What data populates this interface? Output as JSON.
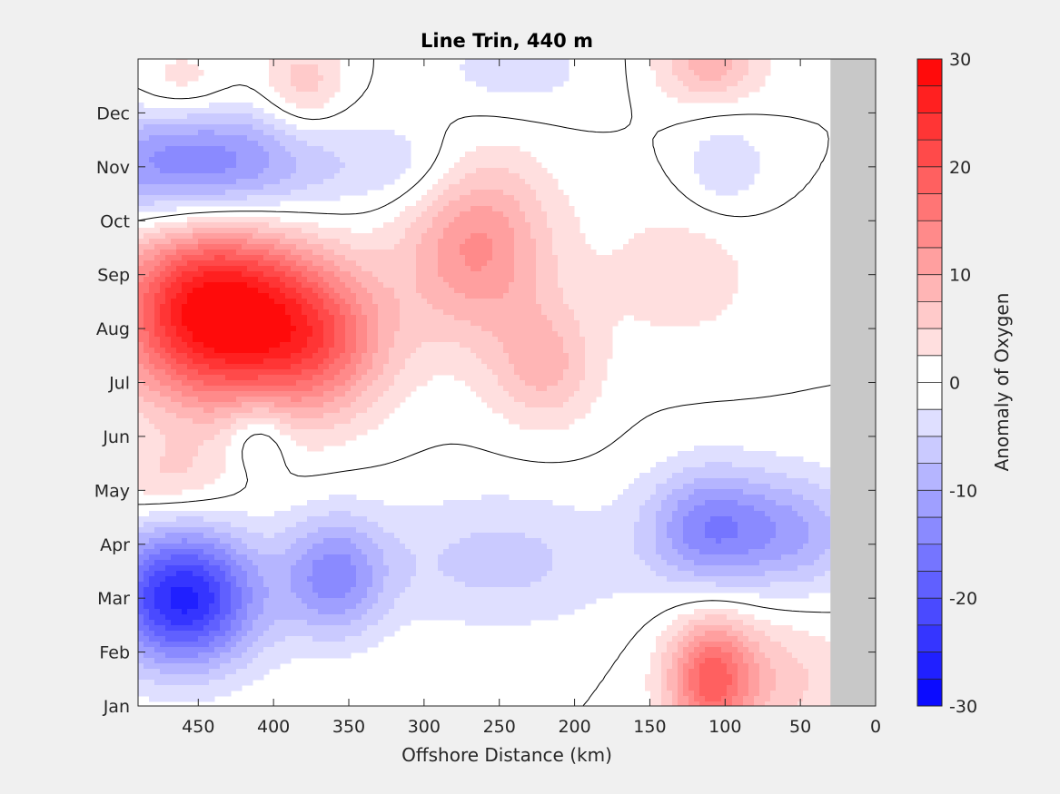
{
  "chart_data": {
    "type": "heatmap",
    "subtype": "filled-contour",
    "title": "Line Trin, 440 m",
    "xlabel": "Offshore Distance (km)",
    "xlim": [
      490,
      0
    ],
    "x_reversed": true,
    "xticks": [
      450,
      400,
      350,
      300,
      250,
      200,
      150,
      100,
      50,
      0
    ],
    "y_categories": [
      "Jan",
      "Feb",
      "Mar",
      "Apr",
      "May",
      "Jun",
      "Jul",
      "Aug",
      "Sep",
      "Oct",
      "Nov",
      "Dec"
    ],
    "colorbar": {
      "label": "Anomaly of Oxygen",
      "range": [
        -30,
        30
      ],
      "step": 2.5,
      "ticks": [
        30,
        20,
        10,
        0,
        -10,
        -20,
        -30
      ],
      "low_color": "#0000ff",
      "mid_color": "#ffffff",
      "high_color": "#ff0000"
    },
    "no_data_region_km": [
      30,
      0
    ],
    "no_data_color": "#c8c8c8",
    "zero_contour_color": "#000000",
    "features": [
      {
        "x_km": 440,
        "month": 8.3,
        "value": 30,
        "sigma_km": 45,
        "sigma_month": 1.2
      },
      {
        "x_km": 370,
        "month": 7.8,
        "value": 15,
        "sigma_km": 35,
        "sigma_month": 1.0
      },
      {
        "x_km": 460,
        "month": 3.0,
        "value": -26,
        "sigma_km": 35,
        "sigma_month": 0.9
      },
      {
        "x_km": 360,
        "month": 3.4,
        "value": -13,
        "sigma_km": 25,
        "sigma_month": 0.8
      },
      {
        "x_km": 450,
        "month": 11.0,
        "value": -16,
        "sigma_km": 60,
        "sigma_month": 0.8
      },
      {
        "x_km": 265,
        "month": 9.5,
        "value": 13,
        "sigma_km": 35,
        "sigma_month": 1.2
      },
      {
        "x_km": 220,
        "month": 7.3,
        "value": 8,
        "sigma_km": 25,
        "sigma_month": 0.8
      },
      {
        "x_km": 110,
        "month": 1.5,
        "value": 16,
        "sigma_km": 20,
        "sigma_month": 0.8
      },
      {
        "x_km": 70,
        "month": 1.5,
        "value": 6,
        "sigma_km": 40,
        "sigma_month": 0.9
      },
      {
        "x_km": 110,
        "month": 4.3,
        "value": -14,
        "sigma_km": 30,
        "sigma_month": 0.8
      },
      {
        "x_km": 50,
        "month": 4.2,
        "value": -9,
        "sigma_km": 30,
        "sigma_month": 0.8
      },
      {
        "x_km": 250,
        "month": 3.7,
        "value": -6,
        "sigma_km": 60,
        "sigma_month": 0.9
      },
      {
        "x_km": 380,
        "month": 12.5,
        "value": 7,
        "sigma_km": 20,
        "sigma_month": 0.6
      },
      {
        "x_km": 110,
        "month": 12.9,
        "value": 9,
        "sigma_km": 25,
        "sigma_month": 0.5
      },
      {
        "x_km": 240,
        "month": 12.8,
        "value": -4,
        "sigma_km": 40,
        "sigma_month": 0.6
      },
      {
        "x_km": 130,
        "month": 9.0,
        "value": 4,
        "sigma_km": 40,
        "sigma_month": 1.0
      },
      {
        "x_km": 470,
        "month": 5.2,
        "value": 5,
        "sigma_km": 30,
        "sigma_month": 0.5
      },
      {
        "x_km": 410,
        "month": 6.0,
        "value": -6,
        "sigma_km": 15,
        "sigma_month": 0.5
      },
      {
        "x_km": 100,
        "month": 11.0,
        "value": -5,
        "sigma_km": 20,
        "sigma_month": 0.6
      },
      {
        "x_km": 310,
        "month": 11.0,
        "value": -4,
        "sigma_km": 30,
        "sigma_month": 0.6
      },
      {
        "x_km": 460,
        "month": 12.5,
        "value": 5,
        "sigma_km": 25,
        "sigma_month": 0.5
      }
    ]
  }
}
